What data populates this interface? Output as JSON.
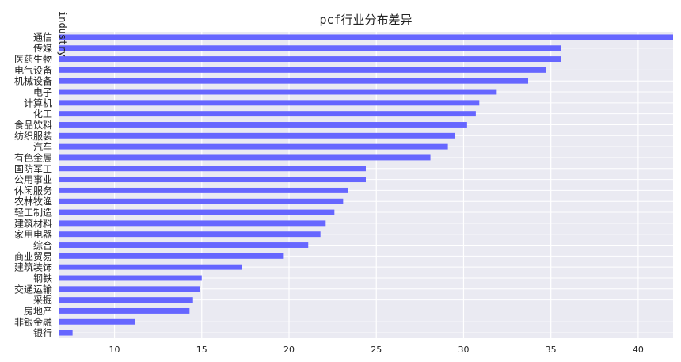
{
  "chart_data": {
    "type": "bar",
    "orientation": "horizontal",
    "title": "pcf行业分布差异",
    "ylabel": "industry",
    "xlabel": "",
    "xlim": [
      6.8,
      42
    ],
    "xticks": [
      10,
      15,
      20,
      25,
      30,
      35,
      40
    ],
    "grid": true,
    "bar_color": "#6666ff",
    "background_color": "#eaeaf2",
    "categories": [
      "通信",
      "传媒",
      "医药生物",
      "电气设备",
      "机械设备",
      "电子",
      "计算机",
      "化工",
      "食品饮料",
      "纺织服装",
      "汽车",
      "有色金属",
      "国防军工",
      "公用事业",
      "休闲服务",
      "农林牧渔",
      "轻工制造",
      "建筑材料",
      "家用电器",
      "综合",
      "商业贸易",
      "建筑装饰",
      "钢铁",
      "交通运输",
      "采掘",
      "房地产",
      "非银金融",
      "银行"
    ],
    "values": [
      42.0,
      35.6,
      35.6,
      34.7,
      33.7,
      31.9,
      30.9,
      30.7,
      30.2,
      29.5,
      29.1,
      28.1,
      24.4,
      24.4,
      23.4,
      23.1,
      22.6,
      22.1,
      21.8,
      21.1,
      19.7,
      17.3,
      15.0,
      14.9,
      14.5,
      14.3,
      11.2,
      7.6
    ]
  }
}
